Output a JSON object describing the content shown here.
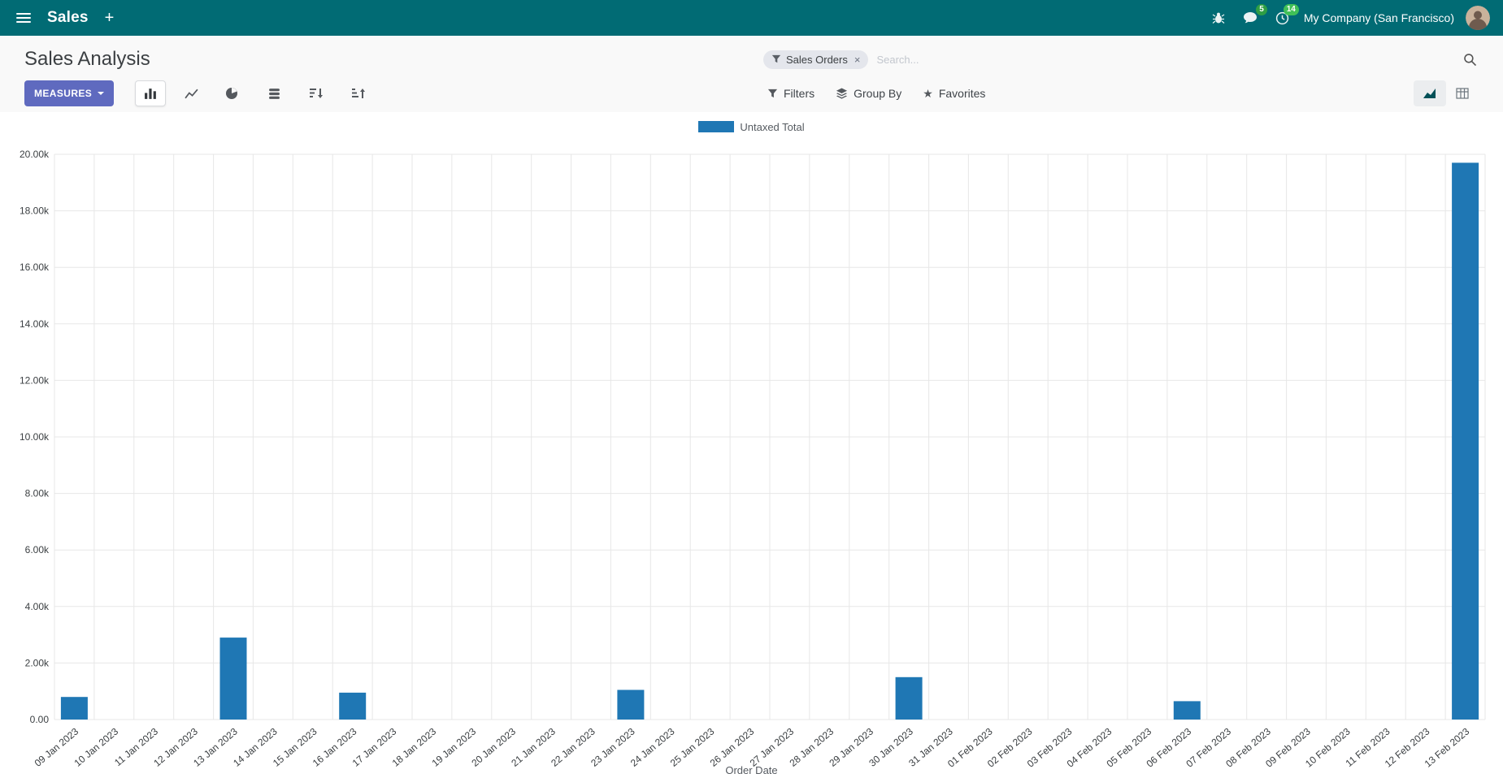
{
  "colors": {
    "navbar_bg": "#016b74",
    "primary": "#5f6abf",
    "bar_color": "#1f77b4",
    "badge_green": "#2f9e44",
    "badge_green2": "#40c057",
    "facet_bg": "#e4e6ec"
  },
  "icons": {
    "star": "★",
    "plus": "+",
    "facet_remove": "×"
  },
  "navbar": {
    "app_name": "Sales",
    "messages_badge": "5",
    "activities_badge": "14",
    "company": "My Company (San Francisco)"
  },
  "control_panel": {
    "title": "Sales Analysis",
    "search": {
      "facet": "Sales Orders",
      "placeholder": "Search..."
    },
    "measures_label": "MEASURES",
    "filters_label": "Filters",
    "group_by_label": "Group By",
    "favorites_label": "Favorites"
  },
  "chart_data": {
    "type": "bar",
    "title": "",
    "xlabel": "Order Date",
    "ylabel": "",
    "ylim": [
      0,
      20000
    ],
    "ytick_step": 2000,
    "ytick_labels": [
      "0.00",
      "2.00k",
      "4.00k",
      "6.00k",
      "8.00k",
      "10.00k",
      "12.00k",
      "14.00k",
      "16.00k",
      "18.00k",
      "20.00k"
    ],
    "grid": true,
    "legend_position": "top",
    "categories": [
      "09 Jan 2023",
      "10 Jan 2023",
      "11 Jan 2023",
      "12 Jan 2023",
      "13 Jan 2023",
      "14 Jan 2023",
      "15 Jan 2023",
      "16 Jan 2023",
      "17 Jan 2023",
      "18 Jan 2023",
      "19 Jan 2023",
      "20 Jan 2023",
      "21 Jan 2023",
      "22 Jan 2023",
      "23 Jan 2023",
      "24 Jan 2023",
      "25 Jan 2023",
      "26 Jan 2023",
      "27 Jan 2023",
      "28 Jan 2023",
      "29 Jan 2023",
      "30 Jan 2023",
      "31 Jan 2023",
      "01 Feb 2023",
      "02 Feb 2023",
      "03 Feb 2023",
      "04 Feb 2023",
      "05 Feb 2023",
      "06 Feb 2023",
      "07 Feb 2023",
      "08 Feb 2023",
      "09 Feb 2023",
      "10 Feb 2023",
      "11 Feb 2023",
      "12 Feb 2023",
      "13 Feb 2023"
    ],
    "series": [
      {
        "name": "Untaxed Total",
        "values": [
          800,
          0,
          0,
          0,
          2900,
          0,
          0,
          950,
          0,
          0,
          0,
          0,
          0,
          0,
          1050,
          0,
          0,
          0,
          0,
          0,
          0,
          1500,
          0,
          0,
          0,
          0,
          0,
          0,
          650,
          0,
          0,
          0,
          0,
          0,
          0,
          19700
        ]
      }
    ]
  }
}
